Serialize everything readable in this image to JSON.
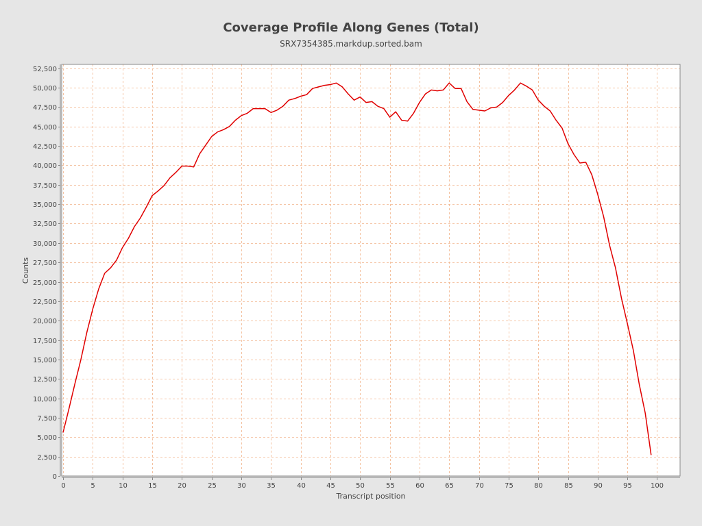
{
  "chart_data": {
    "type": "line",
    "title": "Coverage Profile Along Genes (Total)",
    "subtitle": "SRX7354385.markdup.sorted.bam",
    "xlabel": "Transcript position",
    "ylabel": "Counts",
    "xlim": [
      0,
      104
    ],
    "ylim": [
      0,
      53000
    ],
    "x_ticks": [
      0,
      5,
      10,
      15,
      20,
      25,
      30,
      35,
      40,
      45,
      50,
      55,
      60,
      65,
      70,
      75,
      80,
      85,
      90,
      95,
      100
    ],
    "y_ticks": [
      0,
      2500,
      5000,
      7500,
      10000,
      12500,
      15000,
      17500,
      20000,
      22500,
      25000,
      27500,
      30000,
      32500,
      35000,
      37500,
      40000,
      42500,
      45000,
      47500,
      50000,
      52500
    ],
    "y_tick_labels": [
      "0",
      "2,500",
      "5,000",
      "7,500",
      "10,000",
      "12,500",
      "15,000",
      "17,500",
      "20,000",
      "22,500",
      "25,000",
      "27,500",
      "30,000",
      "32,500",
      "35,000",
      "37,500",
      "40,000",
      "42,500",
      "45,000",
      "47,500",
      "50,000",
      "52,500"
    ],
    "grid": true,
    "legend": "none",
    "series": [
      {
        "color": "#e00000",
        "x": [
          0,
          1,
          2,
          3,
          4,
          5,
          6,
          7,
          8,
          9,
          10,
          11,
          12,
          13,
          14,
          15,
          16,
          17,
          18,
          19,
          20,
          21,
          22,
          23,
          24,
          25,
          26,
          27,
          28,
          29,
          30,
          31,
          32,
          33,
          34,
          35,
          36,
          37,
          38,
          39,
          40,
          41,
          42,
          43,
          44,
          45,
          46,
          47,
          48,
          49,
          50,
          51,
          52,
          53,
          54,
          55,
          56,
          57,
          58,
          59,
          60,
          61,
          62,
          63,
          64,
          65,
          66,
          67,
          68,
          69,
          70,
          71,
          72,
          73,
          74,
          75,
          76,
          77,
          78,
          79,
          80,
          81,
          82,
          83,
          84,
          85,
          86,
          87,
          88,
          89,
          90,
          91,
          92,
          93,
          94,
          95,
          96,
          97,
          98,
          99
        ],
        "values": [
          5600,
          8700,
          11900,
          15000,
          18500,
          21500,
          24100,
          26100,
          26800,
          27800,
          29400,
          30600,
          32100,
          33200,
          34600,
          36100,
          36700,
          37400,
          38400,
          39100,
          39900,
          39900,
          39800,
          41500,
          42600,
          43700,
          44300,
          44600,
          45000,
          45800,
          46400,
          46700,
          47300,
          47300,
          47300,
          46800,
          47100,
          47600,
          48400,
          48600,
          48900,
          49100,
          49900,
          50100,
          50300,
          50400,
          50600,
          50100,
          49200,
          48400,
          48800,
          48100,
          48200,
          47600,
          47300,
          46200,
          46900,
          45800,
          45700,
          46700,
          48100,
          49200,
          49700,
          49600,
          49700,
          50600,
          49900,
          49900,
          48200,
          47200,
          47100,
          47000,
          47400,
          47500,
          48100,
          49000,
          49700,
          50600,
          50200,
          49700,
          48400,
          47600,
          47000,
          45800,
          44800,
          42800,
          41400,
          40300,
          40400,
          38800,
          36300,
          33400,
          29700,
          26800,
          22900,
          19600,
          16200,
          11800,
          8100,
          2700
        ]
      }
    ]
  }
}
